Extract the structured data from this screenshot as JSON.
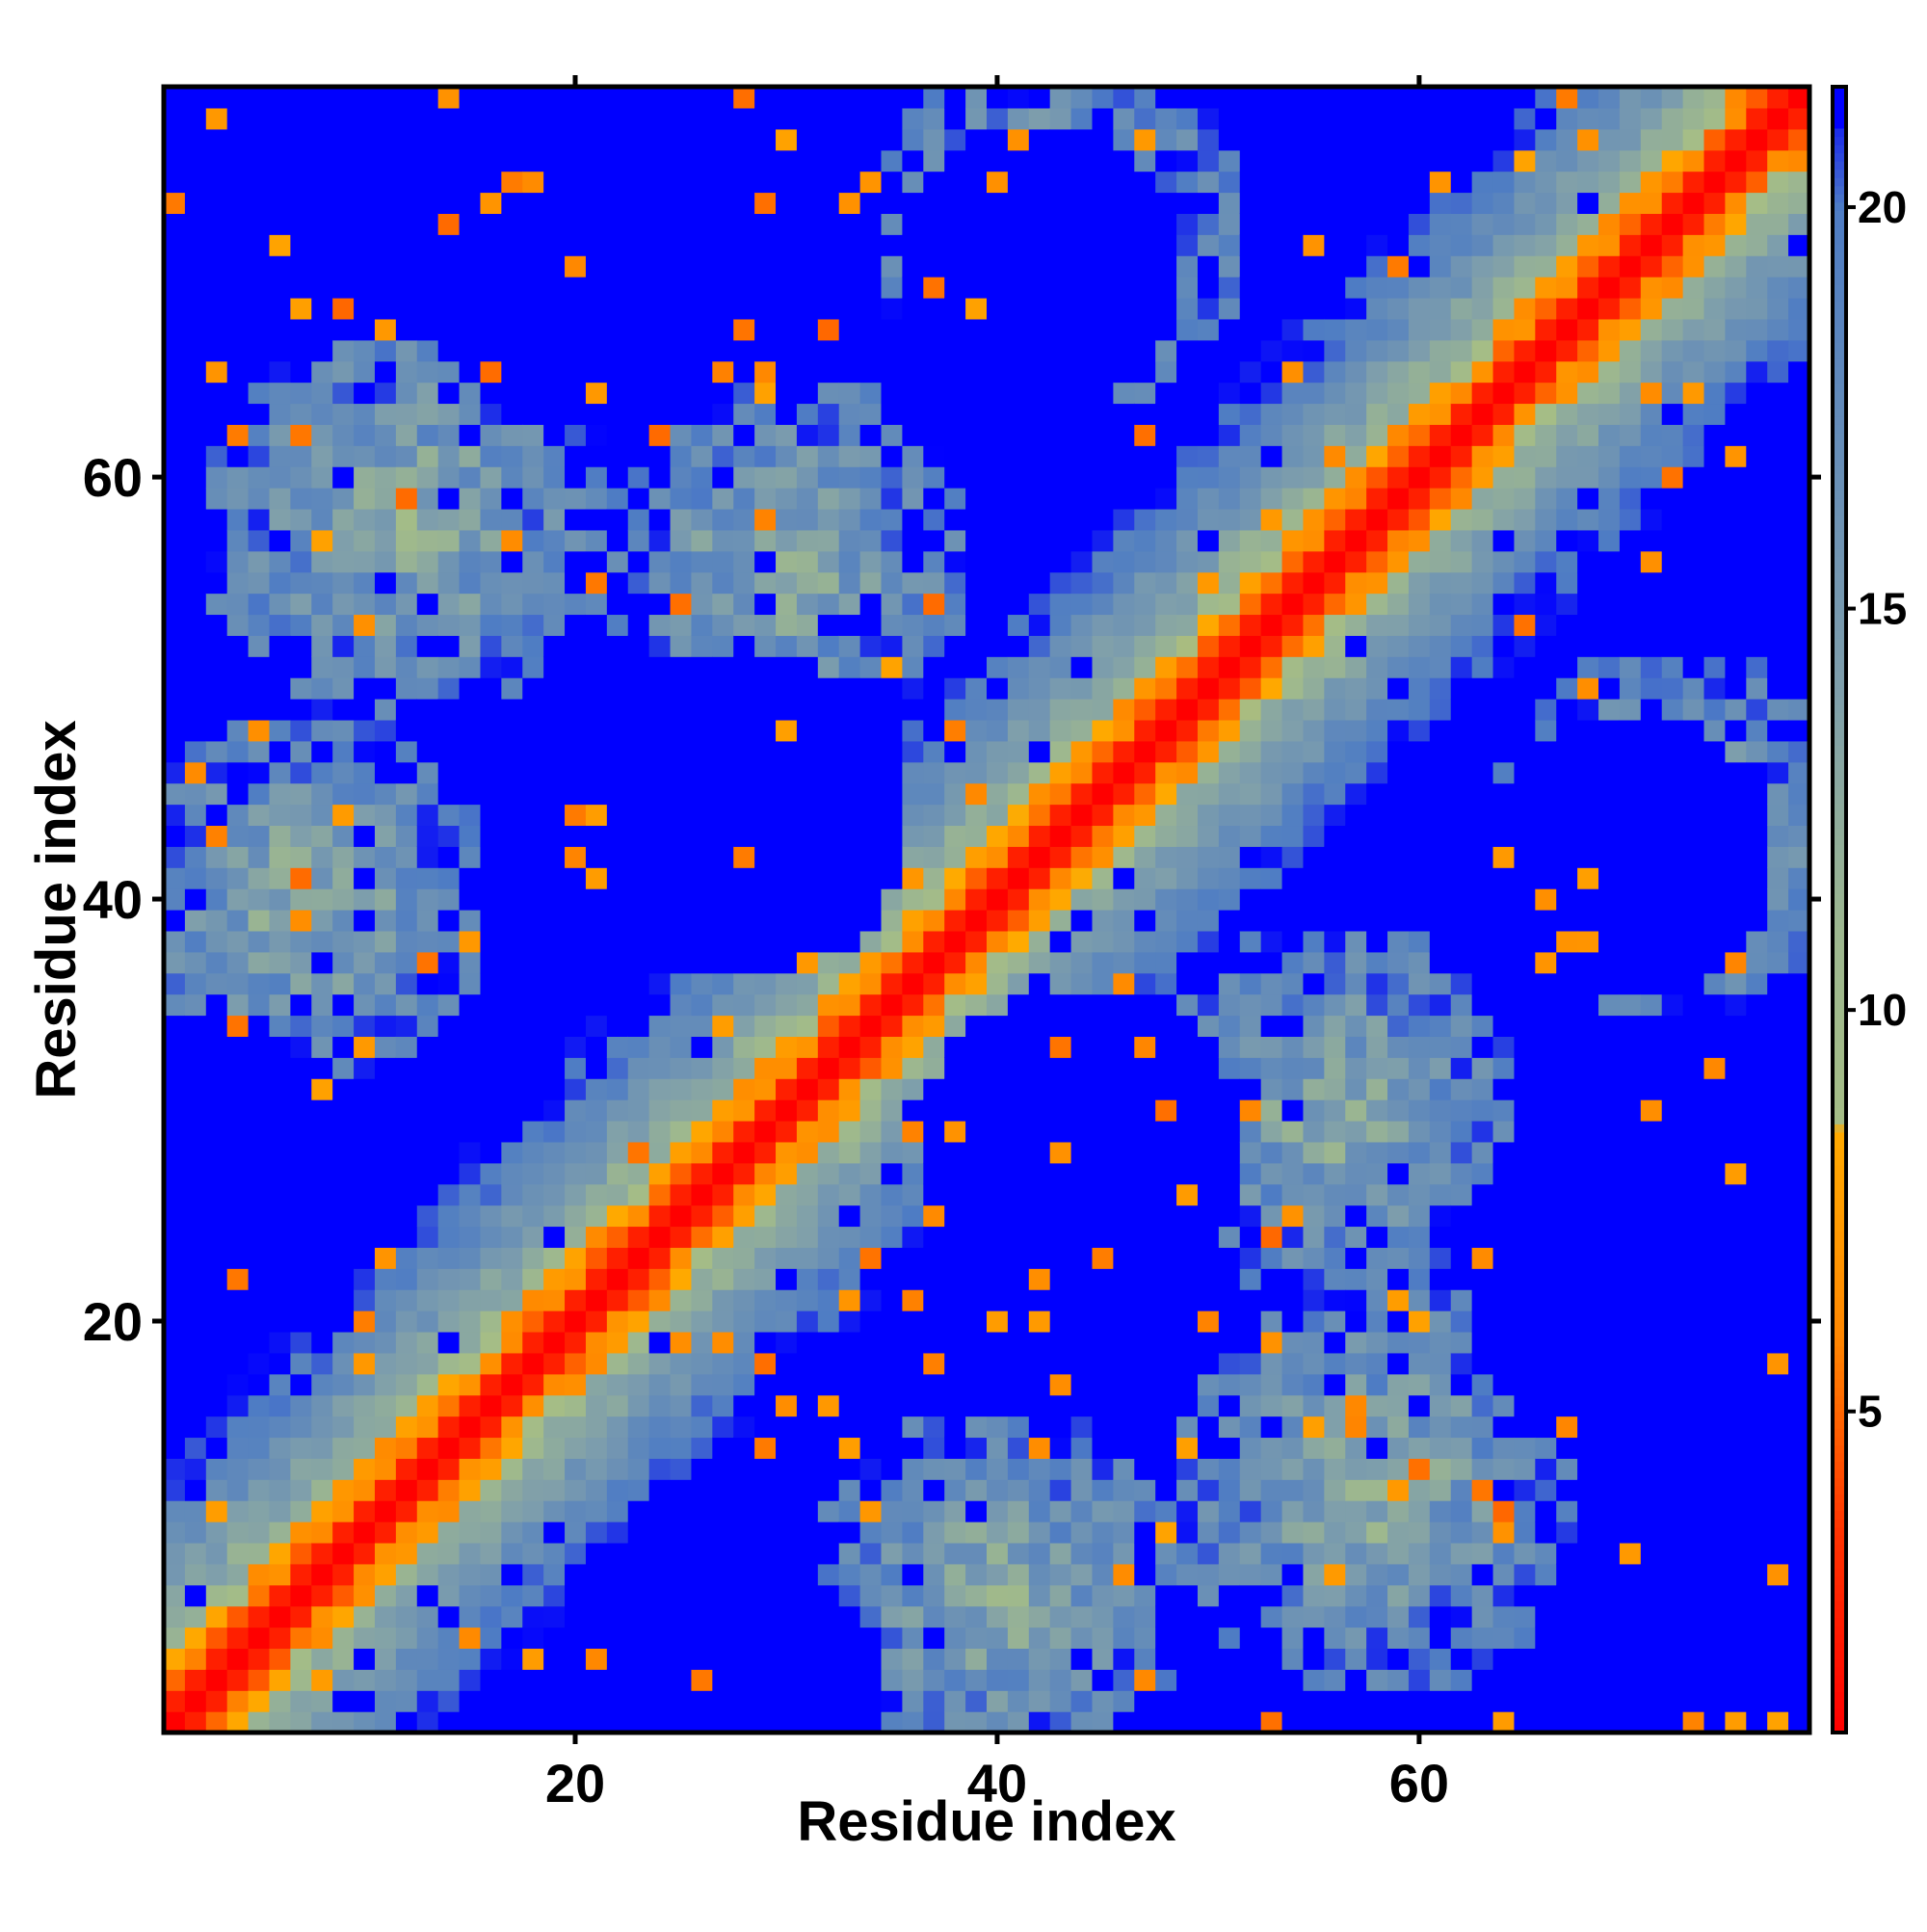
{
  "chart_data": {
    "type": "heatmap",
    "title": "",
    "xlabel": "Residue index",
    "ylabel": "Residue index",
    "n_residues": 78,
    "xlim": [
      0.5,
      78.5
    ],
    "ylim": [
      0.5,
      78.5
    ],
    "x_ticks": [
      20,
      40,
      60
    ],
    "y_ticks": [
      20,
      40,
      60
    ],
    "grid": false,
    "colorbar": {
      "position": "right",
      "range": [
        1,
        21.5
      ],
      "ticks": [
        5,
        10,
        15,
        20
      ],
      "colors": {
        "near": "#ff0000",
        "mid_near": "#ff6600",
        "mid": "#ffaa00",
        "sage": "#9fbb8a",
        "steel": "#5f8fbd",
        "far": "#0000ff"
      },
      "stops": [
        {
          "value": 1,
          "color": "#ff0000"
        },
        {
          "value": 3.5,
          "color": "#ff3300"
        },
        {
          "value": 6,
          "color": "#ff8800"
        },
        {
          "value": 8.5,
          "color": "#ffaa00"
        },
        {
          "value": 8.6,
          "color": "#a5bd86"
        },
        {
          "value": 11,
          "color": "#9db78f"
        },
        {
          "value": 14,
          "color": "#7f9fab"
        },
        {
          "value": 20,
          "color": "#4e7cc4"
        },
        {
          "value": 21.5,
          "color": "#0000ff"
        }
      ]
    },
    "values_description": "Symmetric residue-residue distance map: values near 1 on the diagonal (red), rising through orange and sage to steel blue; pairs beyond the cutoff are shown in saturated blue.",
    "far_cutoff": 21.5,
    "structure": {
      "diagonal_width": 1.6,
      "band_falloff": 9.5,
      "contact_clusters": [
        {
          "i": 12,
          "j": 58,
          "spread": 10
        },
        {
          "i": 7,
          "j": 40,
          "spread": 9
        },
        {
          "i": 30,
          "j": 56,
          "spread": 9
        },
        {
          "i": 43,
          "j": 72,
          "spread": 9
        },
        {
          "i": 18,
          "j": 76,
          "spread": 8
        }
      ],
      "void_regions": [
        {
          "i": 22,
          "j": 72,
          "r": 10
        },
        {
          "i": 28,
          "j": 44,
          "r": 8
        },
        {
          "i": 42,
          "j": 70,
          "r": 7
        },
        {
          "i": 5,
          "j": 78,
          "r": 12
        },
        {
          "i": 2,
          "j": 28,
          "r": 7
        }
      ]
    }
  }
}
